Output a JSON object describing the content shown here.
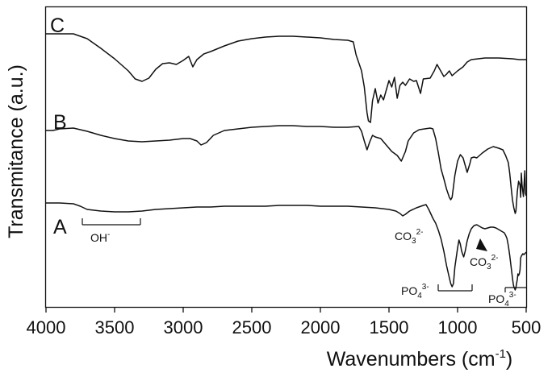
{
  "chart_data": {
    "type": "line",
    "title": "",
    "xlabel": "Wavenumbers (cm",
    "xlabel_sup": "-1",
    "xlabel_end": ")",
    "ylabel": "Transmitance (a.u.)",
    "xlim": [
      4000,
      500
    ],
    "x_reversed": true,
    "x_ticks": [
      4000,
      3500,
      3000,
      2500,
      2000,
      1500,
      1000,
      500
    ],
    "y_ticks": [],
    "grid": false,
    "series": [
      {
        "name": "C",
        "points": [
          [
            4000,
            42
          ],
          [
            3850,
            42
          ],
          [
            3800,
            42
          ],
          [
            3700,
            48
          ],
          [
            3600,
            60
          ],
          [
            3500,
            73
          ],
          [
            3400,
            88
          ],
          [
            3350,
            98
          ],
          [
            3300,
            101
          ],
          [
            3250,
            97
          ],
          [
            3200,
            86
          ],
          [
            3150,
            79
          ],
          [
            3100,
            78
          ],
          [
            3050,
            80
          ],
          [
            3000,
            75
          ],
          [
            2960,
            70
          ],
          [
            2930,
            83
          ],
          [
            2900,
            74
          ],
          [
            2850,
            67
          ],
          [
            2800,
            64
          ],
          [
            2700,
            57
          ],
          [
            2600,
            51
          ],
          [
            2500,
            48
          ],
          [
            2400,
            46
          ],
          [
            2300,
            45
          ],
          [
            2200,
            45
          ],
          [
            2100,
            46
          ],
          [
            2000,
            47
          ],
          [
            1900,
            49
          ],
          [
            1800,
            50
          ],
          [
            1760,
            52
          ],
          [
            1740,
            68
          ],
          [
            1720,
            78
          ],
          [
            1700,
            88
          ],
          [
            1680,
            108
          ],
          [
            1660,
            140
          ],
          [
            1650,
            150
          ],
          [
            1635,
            152
          ],
          [
            1620,
            125
          ],
          [
            1600,
            110
          ],
          [
            1580,
            128
          ],
          [
            1560,
            118
          ],
          [
            1540,
            124
          ],
          [
            1500,
            100
          ],
          [
            1480,
            108
          ],
          [
            1460,
            96
          ],
          [
            1440,
            122
          ],
          [
            1420,
            106
          ],
          [
            1400,
            102
          ],
          [
            1380,
            106
          ],
          [
            1350,
            98
          ],
          [
            1320,
            101
          ],
          [
            1300,
            100
          ],
          [
            1270,
            116
          ],
          [
            1250,
            98
          ],
          [
            1200,
            97
          ],
          [
            1170,
            88
          ],
          [
            1150,
            80
          ],
          [
            1130,
            86
          ],
          [
            1100,
            95
          ],
          [
            1080,
            92
          ],
          [
            1060,
            88
          ],
          [
            1040,
            94
          ],
          [
            1000,
            88
          ],
          [
            960,
            83
          ],
          [
            930,
            77
          ],
          [
            900,
            74
          ],
          [
            800,
            72
          ],
          [
            700,
            72
          ],
          [
            600,
            73
          ],
          [
            550,
            74
          ],
          [
            500,
            74
          ]
        ]
      },
      {
        "name": "B",
        "points": [
          [
            4000,
            162
          ],
          [
            3950,
            162
          ],
          [
            3900,
            160
          ],
          [
            3800,
            159
          ],
          [
            3700,
            163
          ],
          [
            3600,
            168
          ],
          [
            3500,
            172
          ],
          [
            3400,
            175
          ],
          [
            3300,
            176
          ],
          [
            3200,
            175
          ],
          [
            3100,
            174
          ],
          [
            3000,
            172
          ],
          [
            2950,
            172
          ],
          [
            2900,
            175
          ],
          [
            2870,
            180
          ],
          [
            2830,
            177
          ],
          [
            2780,
            168
          ],
          [
            2700,
            162
          ],
          [
            2600,
            160
          ],
          [
            2500,
            158
          ],
          [
            2400,
            157
          ],
          [
            2300,
            156
          ],
          [
            2200,
            156
          ],
          [
            2100,
            157
          ],
          [
            2000,
            157
          ],
          [
            1900,
            158
          ],
          [
            1800,
            158
          ],
          [
            1720,
            157
          ],
          [
            1700,
            163
          ],
          [
            1680,
            175
          ],
          [
            1660,
            186
          ],
          [
            1640,
            176
          ],
          [
            1620,
            168
          ],
          [
            1600,
            170
          ],
          [
            1560,
            172
          ],
          [
            1520,
            180
          ],
          [
            1480,
            188
          ],
          [
            1440,
            193
          ],
          [
            1410,
            200
          ],
          [
            1380,
            188
          ],
          [
            1360,
            175
          ],
          [
            1320,
            165
          ],
          [
            1280,
            161
          ],
          [
            1240,
            160
          ],
          [
            1200,
            159
          ],
          [
            1180,
            160
          ],
          [
            1160,
            172
          ],
          [
            1140,
            190
          ],
          [
            1120,
            210
          ],
          [
            1100,
            222
          ],
          [
            1080,
            235
          ],
          [
            1060,
            245
          ],
          [
            1050,
            248
          ],
          [
            1040,
            245
          ],
          [
            1030,
            232
          ],
          [
            1020,
            218
          ],
          [
            1000,
            200
          ],
          [
            980,
            192
          ],
          [
            960,
            196
          ],
          [
            950,
            202
          ],
          [
            930,
            214
          ],
          [
            910,
            203
          ],
          [
            900,
            196
          ],
          [
            880,
            195
          ],
          [
            860,
            196
          ],
          [
            820,
            190
          ],
          [
            780,
            185
          ],
          [
            740,
            182
          ],
          [
            700,
            184
          ],
          [
            670,
            186
          ],
          [
            650,
            193
          ],
          [
            630,
            202
          ],
          [
            620,
            215
          ],
          [
            610,
            232
          ],
          [
            600,
            248
          ],
          [
            590,
            258
          ],
          [
            580,
            265
          ],
          [
            575,
            262
          ],
          [
            565,
            238
          ],
          [
            555,
            225
          ],
          [
            545,
            230
          ],
          [
            540,
            245
          ],
          [
            535,
            215
          ],
          [
            530,
            230
          ],
          [
            520,
            244
          ],
          [
            510,
            212
          ],
          [
            505,
            240
          ],
          [
            500,
            243
          ]
        ]
      },
      {
        "name": "A",
        "points": [
          [
            4000,
            252
          ],
          [
            3900,
            252
          ],
          [
            3800,
            253
          ],
          [
            3750,
            256
          ],
          [
            3700,
            260
          ],
          [
            3600,
            262
          ],
          [
            3500,
            263
          ],
          [
            3400,
            263
          ],
          [
            3300,
            262
          ],
          [
            3200,
            260
          ],
          [
            3100,
            259
          ],
          [
            3000,
            258
          ],
          [
            2900,
            257
          ],
          [
            2800,
            257
          ],
          [
            2700,
            256
          ],
          [
            2600,
            256
          ],
          [
            2500,
            256
          ],
          [
            2400,
            256
          ],
          [
            2300,
            255
          ],
          [
            2200,
            255
          ],
          [
            2100,
            255
          ],
          [
            2000,
            256
          ],
          [
            1900,
            256
          ],
          [
            1800,
            256
          ],
          [
            1700,
            257
          ],
          [
            1600,
            258
          ],
          [
            1500,
            260
          ],
          [
            1450,
            262
          ],
          [
            1420,
            265
          ],
          [
            1400,
            268
          ],
          [
            1380,
            266
          ],
          [
            1350,
            262
          ],
          [
            1300,
            258
          ],
          [
            1250,
            255
          ],
          [
            1230,
            254
          ],
          [
            1210,
            260
          ],
          [
            1180,
            271
          ],
          [
            1160,
            277
          ],
          [
            1140,
            286
          ],
          [
            1120,
            297
          ],
          [
            1100,
            312
          ],
          [
            1080,
            330
          ],
          [
            1060,
            345
          ],
          [
            1050,
            352
          ],
          [
            1040,
            356
          ],
          [
            1030,
            352
          ],
          [
            1020,
            332
          ],
          [
            1000,
            308
          ],
          [
            990,
            298
          ],
          [
            980,
            303
          ],
          [
            970,
            312
          ],
          [
            960,
            317
          ],
          [
            955,
            319
          ],
          [
            945,
            312
          ],
          [
            930,
            299
          ],
          [
            915,
            290
          ],
          [
            900,
            284
          ],
          [
            880,
            280
          ],
          [
            860,
            279
          ],
          [
            840,
            281
          ],
          [
            820,
            283
          ],
          [
            800,
            284
          ],
          [
            780,
            283
          ],
          [
            760,
            282
          ],
          [
            740,
            282
          ],
          [
            720,
            283
          ],
          [
            700,
            285
          ],
          [
            680,
            287
          ],
          [
            660,
            289
          ],
          [
            650,
            292
          ],
          [
            640,
            296
          ],
          [
            630,
            305
          ],
          [
            620,
            317
          ],
          [
            610,
            331
          ],
          [
            600,
            345
          ],
          [
            595,
            352
          ],
          [
            590,
            356
          ],
          [
            585,
            358
          ],
          [
            580,
            360
          ],
          [
            575,
            357
          ],
          [
            570,
            352
          ],
          [
            565,
            347
          ],
          [
            560,
            340
          ],
          [
            555,
            342
          ],
          [
            550,
            340
          ],
          [
            545,
            335
          ],
          [
            540,
            320
          ],
          [
            535,
            318
          ],
          [
            525,
            315
          ],
          [
            515,
            316
          ],
          [
            505,
            314
          ],
          [
            500,
            313
          ]
        ]
      }
    ],
    "annotations": {
      "oh": {
        "text": "OH",
        "sup": "-"
      },
      "co3_left": {
        "text": "CO",
        "sub": "3",
        "sup": "2-"
      },
      "co3_right": {
        "text": "CO",
        "sub": "3",
        "sup": "2-"
      },
      "po4_left": {
        "text": "PO",
        "sub": "4",
        "sup": "3-"
      },
      "po4_right": {
        "text": "PO",
        "sub": "4",
        "sup": "3-"
      }
    },
    "colors": {
      "line": "#111111",
      "axis": "#111111",
      "background": "#ffffff"
    }
  }
}
